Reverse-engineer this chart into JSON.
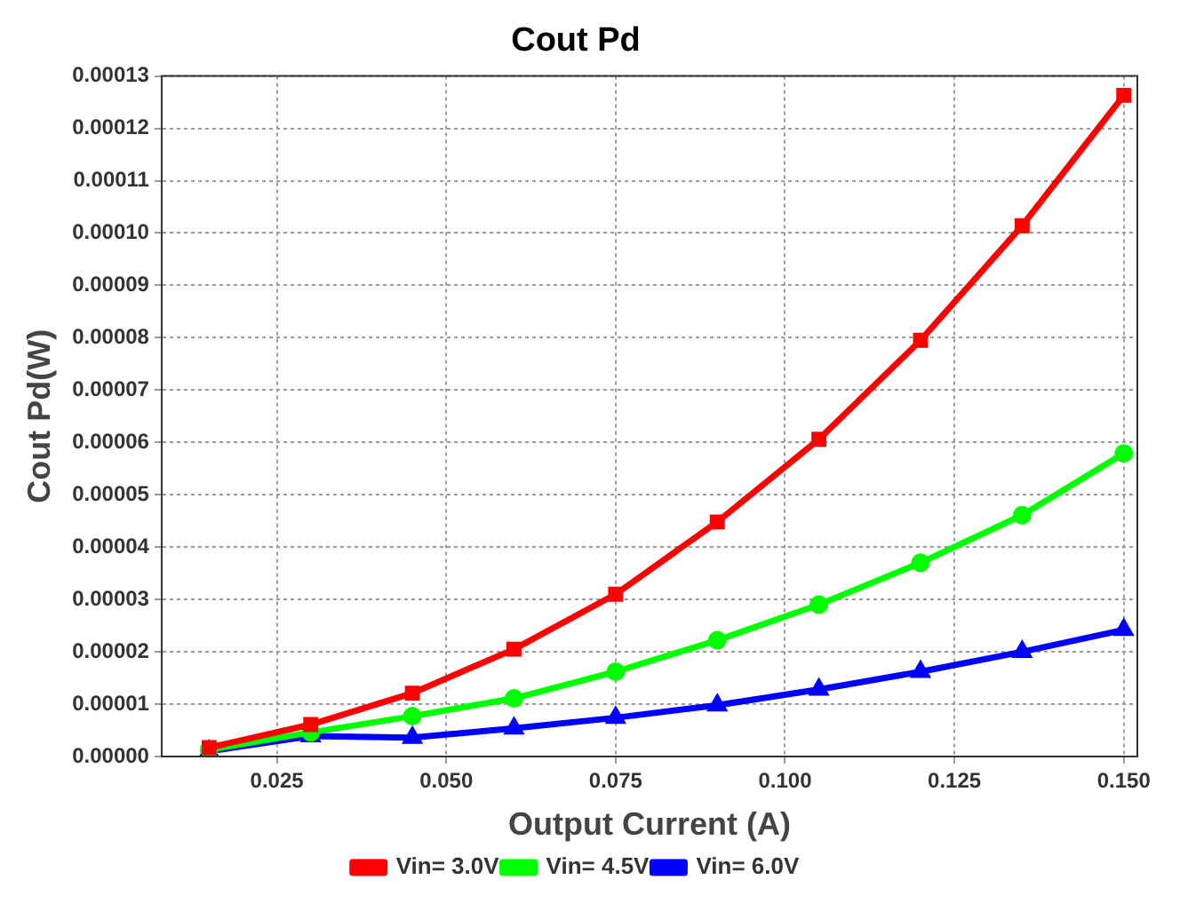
{
  "chart_data": {
    "type": "line",
    "title": "Cout Pd",
    "xlabel": "Output Current (A)",
    "ylabel": "Cout Pd(W)",
    "x": [
      0.015,
      0.03,
      0.045,
      0.06,
      0.075,
      0.09,
      0.105,
      0.12,
      0.135,
      0.15
    ],
    "series": [
      {
        "name": "Vin= 3.0V",
        "color": "#ff0000",
        "marker": "square",
        "values": [
          1.7e-06,
          6.1e-06,
          1.21e-05,
          2.05e-05,
          3.1e-05,
          4.48e-05,
          6.06e-05,
          7.95e-05,
          0.0001014,
          0.0001263
        ]
      },
      {
        "name": "Vin= 4.5V",
        "color": "#00ff00",
        "marker": "circle",
        "values": [
          1.3e-06,
          4.6e-06,
          7.7e-06,
          1.11e-05,
          1.62e-05,
          2.22e-05,
          2.9e-05,
          3.7e-05,
          4.61e-05,
          5.79e-05
        ]
      },
      {
        "name": "Vin= 6.0V",
        "color": "#0000ff",
        "marker": "triangle",
        "values": [
          1e-06,
          3.9e-06,
          3.6e-06,
          5.4e-06,
          7.4e-06,
          9.8e-06,
          1.28e-05,
          1.62e-05,
          2e-05,
          2.42e-05
        ]
      }
    ],
    "xlim": [
      0.008,
      0.152
    ],
    "xticks": [
      {
        "value": 0.025,
        "label": "0.025"
      },
      {
        "value": 0.05,
        "label": "0.050"
      },
      {
        "value": 0.075,
        "label": "0.075"
      },
      {
        "value": 0.1,
        "label": "0.100"
      },
      {
        "value": 0.125,
        "label": "0.125"
      },
      {
        "value": 0.15,
        "label": "0.150"
      }
    ],
    "ylim": [
      0,
      0.00013
    ],
    "yticks": [
      {
        "value": 0,
        "label": "0.00000"
      },
      {
        "value": 1e-05,
        "label": "0.00001"
      },
      {
        "value": 2e-05,
        "label": "0.00002"
      },
      {
        "value": 3e-05,
        "label": "0.00003"
      },
      {
        "value": 4e-05,
        "label": "0.00004"
      },
      {
        "value": 5e-05,
        "label": "0.00005"
      },
      {
        "value": 6e-05,
        "label": "0.00006"
      },
      {
        "value": 7e-05,
        "label": "0.00007"
      },
      {
        "value": 8e-05,
        "label": "0.00008"
      },
      {
        "value": 9e-05,
        "label": "0.00009"
      },
      {
        "value": 0.0001,
        "label": "0.00010"
      },
      {
        "value": 0.00011,
        "label": "0.00011"
      },
      {
        "value": 0.00012,
        "label": "0.00012"
      },
      {
        "value": 0.00013,
        "label": "0.00013"
      }
    ],
    "grid": true,
    "legend": "bottom",
    "line_style": "solid"
  }
}
